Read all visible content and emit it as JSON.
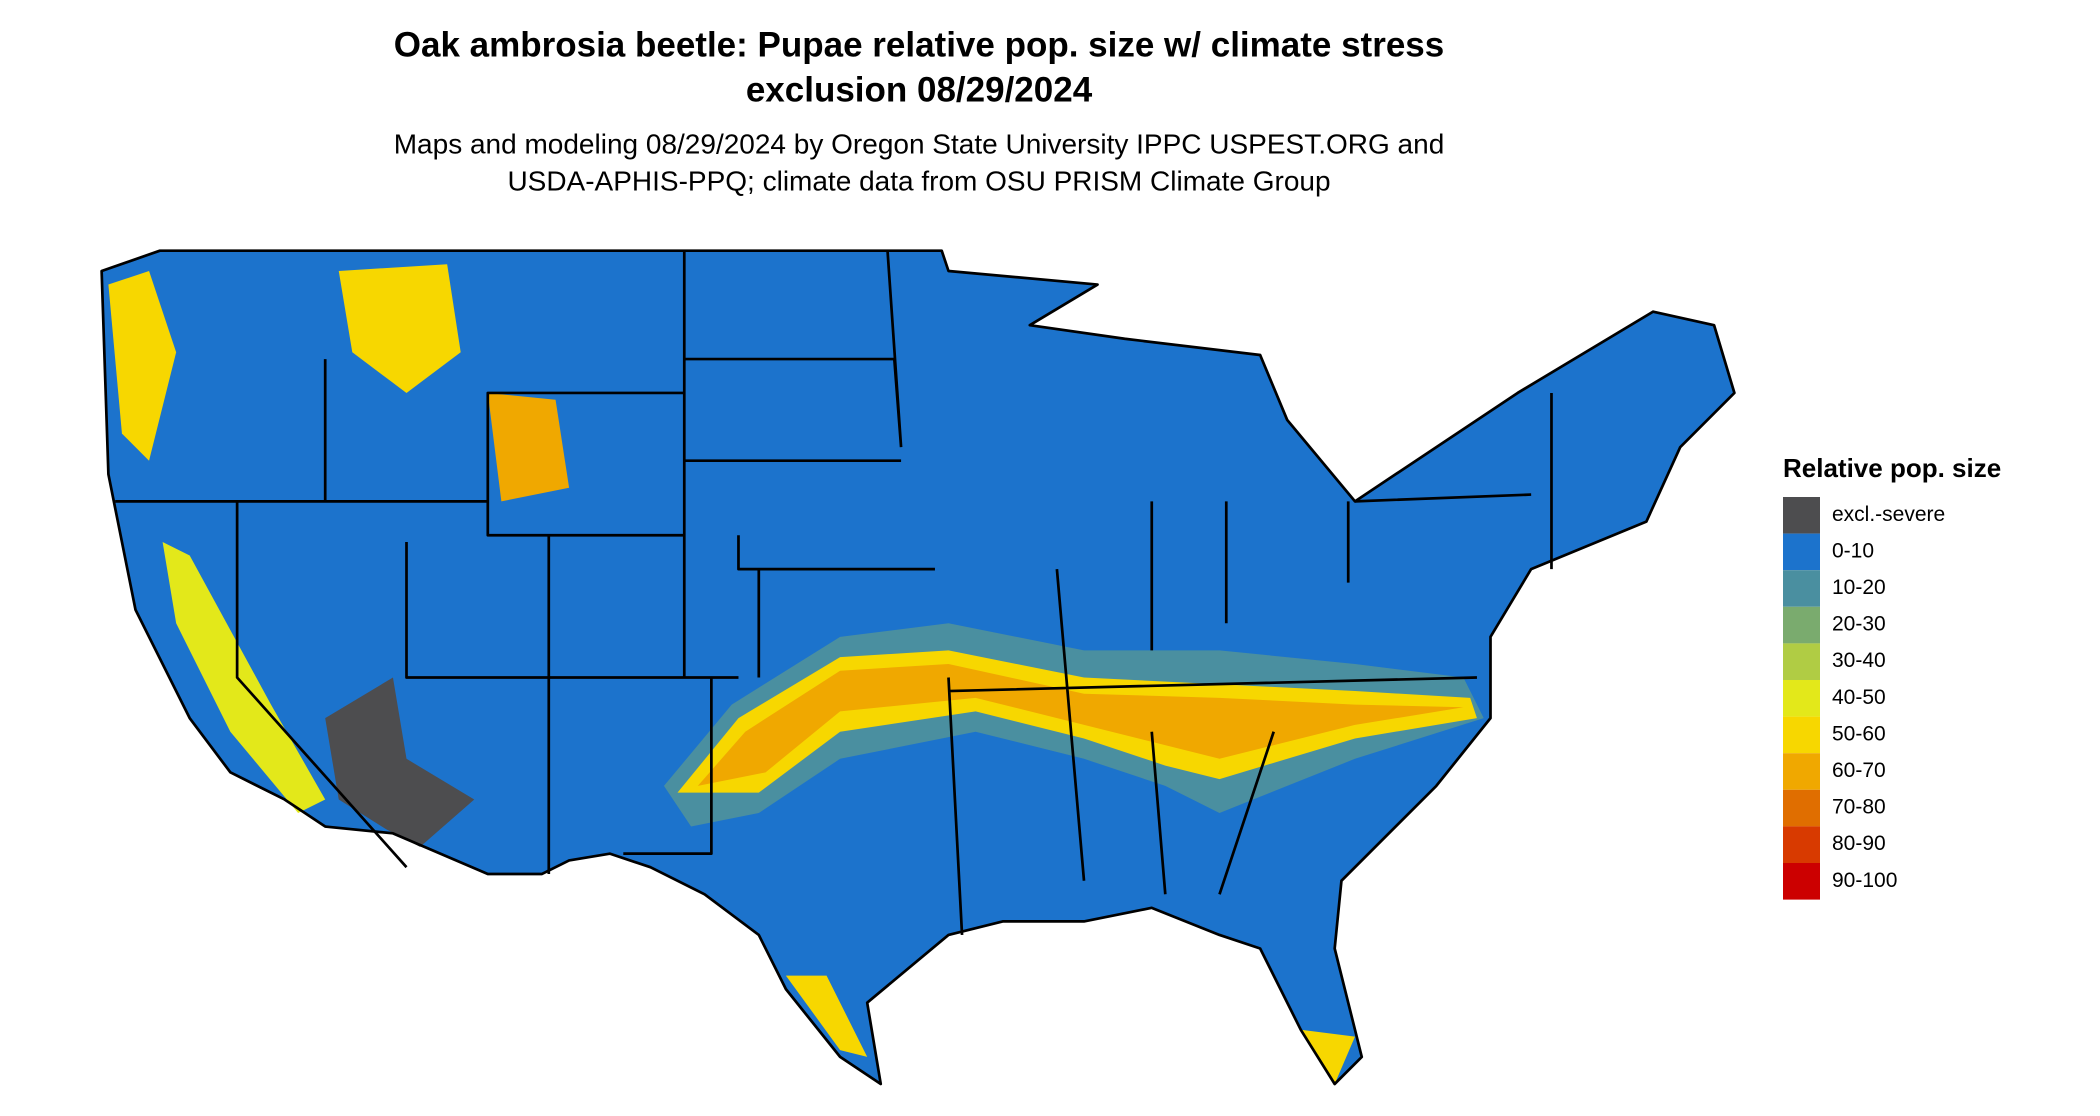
{
  "header": {
    "title_lines": [
      "Oak ambrosia beetle: Pupae relative pop. size w/ climate stress",
      "exclusion 08/29/2024"
    ],
    "subtitle_lines": [
      "Maps and modeling 08/29/2024 by Oregon State University IPPC USPEST.ORG and",
      "USDA-APHIS-PPQ; climate data from OSU PRISM Climate Group"
    ]
  },
  "legend": {
    "title": "Relative pop. size",
    "items": [
      {
        "label": "excl.-severe",
        "color": "#4d4d4f"
      },
      {
        "label": "0-10",
        "color": "#1c73cc"
      },
      {
        "label": "10-20",
        "color": "#4a8fa0"
      },
      {
        "label": "20-30",
        "color": "#7aab6e"
      },
      {
        "label": "30-40",
        "color": "#b0cc44"
      },
      {
        "label": "40-50",
        "color": "#e3e81a"
      },
      {
        "label": "50-60",
        "color": "#f7d700"
      },
      {
        "label": "60-70",
        "color": "#f0a800"
      },
      {
        "label": "70-80",
        "color": "#e06e00"
      },
      {
        "label": "80-90",
        "color": "#d83a00"
      },
      {
        "label": "90-100",
        "color": "#cc0000"
      }
    ]
  }
}
